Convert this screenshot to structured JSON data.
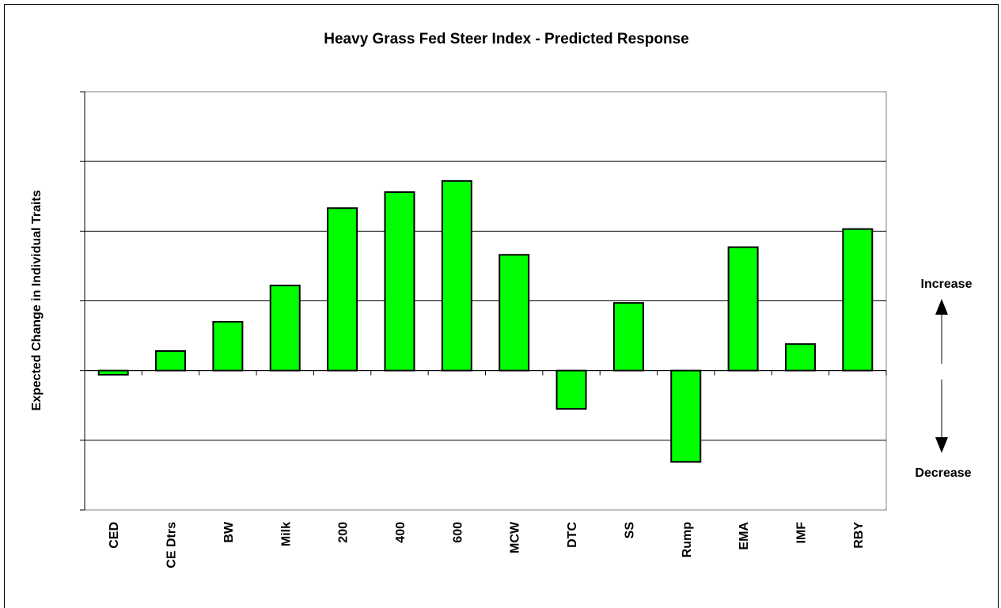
{
  "chart_data": {
    "type": "bar",
    "title": "Heavy Grass Fed Steer Index - Predicted Response",
    "y_label": "Expected Change in Individual Traits",
    "annotations": [
      "Increase",
      "Decrease"
    ],
    "categories": [
      "CED",
      "CE Dtrs",
      "BW",
      "Milk",
      "200",
      "400",
      "600",
      "MCW",
      "DTC",
      "SS",
      "Rump",
      "EMA",
      "IMF",
      "RBY"
    ],
    "values": [
      -0.06,
      0.28,
      0.7,
      1.22,
      2.33,
      2.56,
      2.72,
      1.66,
      -0.55,
      0.97,
      -1.31,
      1.77,
      0.38,
      2.03
    ],
    "color": "#00ff00",
    "ylim": [
      -2,
      4
    ],
    "yticks": [
      -2,
      -1,
      0,
      1,
      2,
      3,
      4
    ],
    "grid": true
  }
}
